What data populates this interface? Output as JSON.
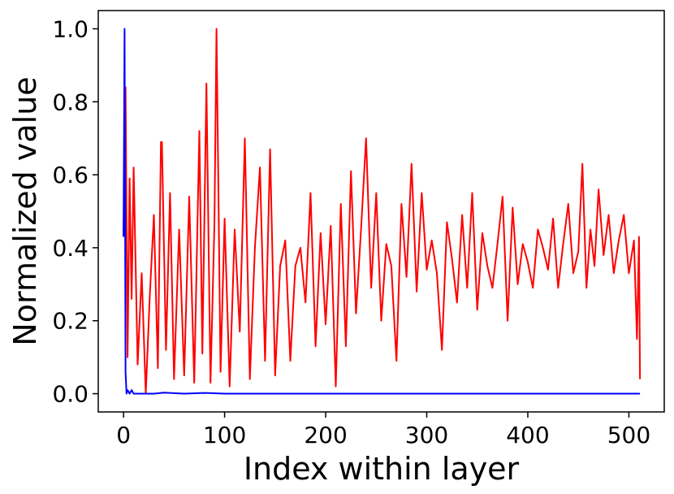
{
  "chart_data": {
    "type": "line",
    "title": "",
    "xlabel": "Index within layer",
    "ylabel": "Normalized value",
    "xlim": [
      -25,
      535
    ],
    "ylim": [
      -0.05,
      1.05
    ],
    "xticks": [
      0,
      100,
      200,
      300,
      400,
      500
    ],
    "xtick_labels": [
      "0",
      "100",
      "200",
      "300",
      "400",
      "500"
    ],
    "yticks": [
      0.0,
      0.2,
      0.4,
      0.6,
      0.8,
      1.0
    ],
    "ytick_labels": [
      "0.0",
      "0.2",
      "0.4",
      "0.6",
      "0.8",
      "1.0"
    ],
    "grid": false,
    "legend": "none",
    "series": [
      {
        "color": "#ff0000",
        "x": [
          0,
          2,
          4,
          6,
          8,
          10,
          14,
          18,
          22,
          26,
          30,
          34,
          37,
          38,
          42,
          46,
          50,
          55,
          60,
          65,
          70,
          75,
          78,
          82,
          86,
          90,
          92,
          96,
          100,
          105,
          110,
          115,
          120,
          125,
          130,
          135,
          140,
          145,
          150,
          155,
          160,
          165,
          170,
          175,
          180,
          185,
          190,
          195,
          200,
          205,
          210,
          215,
          220,
          225,
          230,
          235,
          240,
          245,
          250,
          255,
          260,
          265,
          270,
          275,
          280,
          285,
          290,
          295,
          300,
          305,
          310,
          315,
          320,
          325,
          330,
          335,
          340,
          345,
          350,
          355,
          360,
          365,
          370,
          375,
          380,
          385,
          390,
          395,
          400,
          405,
          410,
          415,
          420,
          425,
          430,
          435,
          440,
          445,
          450,
          454,
          458,
          462,
          466,
          470,
          475,
          480,
          485,
          490,
          495,
          500,
          505,
          508,
          510,
          511
        ],
        "y": [
          0.43,
          0.84,
          0.1,
          0.59,
          0.26,
          0.62,
          0.08,
          0.33,
          0.0,
          0.27,
          0.49,
          0.07,
          0.69,
          0.69,
          0.12,
          0.55,
          0.04,
          0.45,
          0.05,
          0.54,
          0.03,
          0.72,
          0.11,
          0.85,
          0.03,
          0.47,
          1.0,
          0.06,
          0.48,
          0.02,
          0.45,
          0.17,
          0.7,
          0.04,
          0.4,
          0.62,
          0.09,
          0.67,
          0.05,
          0.35,
          0.42,
          0.09,
          0.35,
          0.4,
          0.25,
          0.55,
          0.13,
          0.44,
          0.19,
          0.46,
          0.02,
          0.52,
          0.13,
          0.61,
          0.22,
          0.45,
          0.7,
          0.29,
          0.55,
          0.2,
          0.41,
          0.35,
          0.09,
          0.52,
          0.32,
          0.63,
          0.28,
          0.55,
          0.34,
          0.42,
          0.33,
          0.12,
          0.47,
          0.37,
          0.25,
          0.49,
          0.29,
          0.55,
          0.23,
          0.44,
          0.35,
          0.29,
          0.41,
          0.54,
          0.2,
          0.51,
          0.3,
          0.41,
          0.36,
          0.29,
          0.45,
          0.4,
          0.34,
          0.48,
          0.29,
          0.41,
          0.52,
          0.33,
          0.39,
          0.63,
          0.29,
          0.45,
          0.35,
          0.56,
          0.38,
          0.49,
          0.33,
          0.42,
          0.49,
          0.33,
          0.42,
          0.15,
          0.43,
          0.04
        ]
      },
      {
        "color": "#0000ff",
        "x": [
          0,
          1,
          2,
          3,
          4,
          6,
          8,
          10,
          20,
          30,
          40,
          60,
          80,
          100,
          150,
          200,
          300,
          400,
          500,
          511
        ],
        "y": [
          0.43,
          1.0,
          0.06,
          0.0,
          0.01,
          0.0,
          0.01,
          0.0,
          0.0,
          0.0,
          0.003,
          0.0,
          0.002,
          0.0,
          0.0,
          0.0,
          0.0,
          0.0,
          0.0,
          0.0
        ]
      }
    ]
  }
}
